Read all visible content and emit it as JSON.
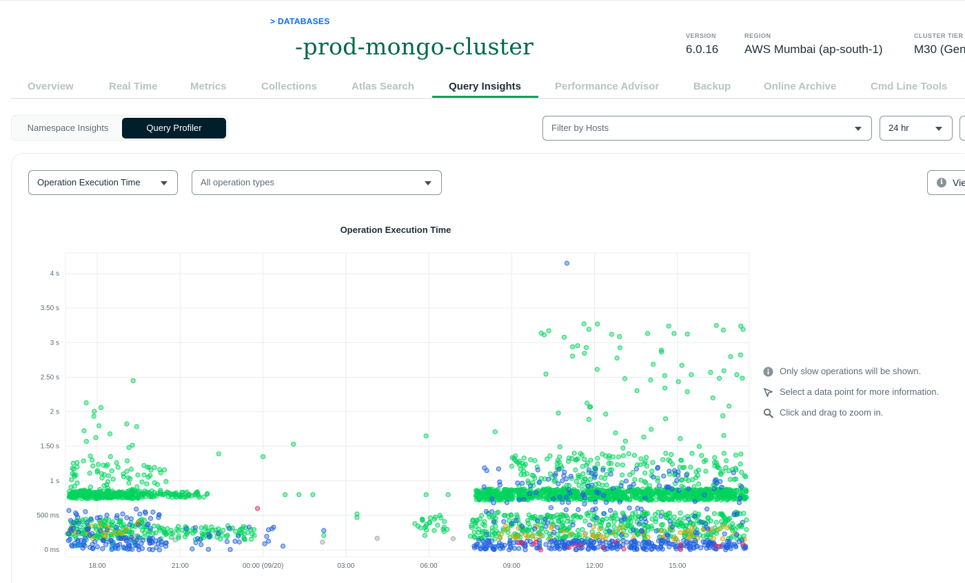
{
  "breadcrumb": "> DATABASES",
  "cluster": {
    "name": "-prod-mongo-cluster"
  },
  "meta": [
    {
      "label": "VERSION",
      "value": "6.0.16"
    },
    {
      "label": "REGION",
      "value": "AWS Mumbai (ap-south-1)"
    },
    {
      "label": "CLUSTER TIER",
      "value": "M30 (Gen"
    }
  ],
  "tabs": [
    {
      "label": "Overview",
      "active": false
    },
    {
      "label": "Real Time",
      "active": false
    },
    {
      "label": "Metrics",
      "active": false
    },
    {
      "label": "Collections",
      "active": false
    },
    {
      "label": "Atlas Search",
      "active": false
    },
    {
      "label": "Query Insights",
      "active": true
    },
    {
      "label": "Performance Advisor",
      "active": false
    },
    {
      "label": "Backup",
      "active": false
    },
    {
      "label": "Online Archive",
      "active": false
    },
    {
      "label": "Cmd Line Tools",
      "active": false
    }
  ],
  "toggle": {
    "namespace_insights": "Namespace Insights",
    "query_profiler": "Query Profiler",
    "selected": "Query Profiler"
  },
  "filters": {
    "hosts_placeholder": "Filter by Hosts",
    "time_range": "24 hr",
    "metric": "Operation Execution Time",
    "operation_types": "All operation types",
    "view_button": "Vie"
  },
  "hints": [
    {
      "icon": "info-icon",
      "text": "Only slow operations will be shown."
    },
    {
      "icon": "cursor-arrow-icon",
      "text": "Select a data point for more information."
    },
    {
      "icon": "magnifier-icon",
      "text": "Click and drag to zoom in."
    }
  ],
  "colors": {
    "brand_green": "#00684a",
    "accent_green": "#00a35c",
    "link_blue": "#016bf8",
    "dark": "#001e2b",
    "series_green": "#00d35c",
    "series_blue": "#1f5fe0",
    "series_yellow": "#d4a400",
    "series_pink": "#e8205e",
    "series_cyan": "#00bcd4",
    "series_gray": "#9aa0a6"
  },
  "chart_data": {
    "type": "scatter",
    "title": "Operation Execution Time",
    "xlabel": "",
    "ylabel": "",
    "x_ticks": [
      "18:00",
      "21:00",
      "00:00 (09/20)",
      "03:00",
      "06:00",
      "09:00",
      "12:00",
      "15:00"
    ],
    "y_ticks": [
      "0 ms",
      "500 ms",
      "1 s",
      "1.50 s",
      "2 s",
      "2.50 s",
      "3 s",
      "3.50 s",
      "4 s"
    ],
    "y_unit": "seconds",
    "ylim": [
      -0.1,
      4.3
    ],
    "xlim_hours_from_1800": [
      -1.15,
      23.6
    ],
    "grid": true,
    "legend": "none",
    "clusters": [
      {
        "series": "green",
        "x": [
          -1.1,
          1.5
        ],
        "y": [
          0.74,
          0.86
        ],
        "n": 230
      },
      {
        "series": "green",
        "x": [
          1.5,
          4.0
        ],
        "y": [
          0.76,
          0.84
        ],
        "n": 70
      },
      {
        "series": "green",
        "x": [
          13.7,
          23.5
        ],
        "y": [
          0.72,
          0.88
        ],
        "n": 900
      },
      {
        "series": "green",
        "x": [
          -1.0,
          2.5
        ],
        "y": [
          0.85,
          1.3
        ],
        "n": 70
      },
      {
        "series": "green",
        "x": [
          -0.5,
          1.5
        ],
        "y": [
          1.3,
          2.1
        ],
        "n": 14
      },
      {
        "series": "green",
        "x": [
          15.0,
          23.5
        ],
        "y": [
          0.85,
          1.4
        ],
        "n": 220
      },
      {
        "series": "green",
        "x": [
          16.0,
          23.5
        ],
        "y": [
          1.4,
          3.3
        ],
        "n": 60
      },
      {
        "series": "green",
        "x": [
          -1.1,
          1.8
        ],
        "y": [
          0.15,
          0.45
        ],
        "n": 140
      },
      {
        "series": "green",
        "x": [
          1.8,
          5.7
        ],
        "y": [
          0.15,
          0.35
        ],
        "n": 90
      },
      {
        "series": "green",
        "x": [
          11.5,
          12.8
        ],
        "y": [
          0.2,
          0.5
        ],
        "n": 25
      },
      {
        "series": "green",
        "x": [
          13.5,
          23.5
        ],
        "y": [
          0.15,
          0.55
        ],
        "n": 420
      },
      {
        "series": "blue",
        "x": [
          -1.1,
          2.5
        ],
        "y": [
          0.0,
          0.18
        ],
        "n": 85
      },
      {
        "series": "blue",
        "x": [
          -1.1,
          2.5
        ],
        "y": [
          0.2,
          0.6
        ],
        "n": 45
      },
      {
        "series": "blue",
        "x": [
          3.0,
          6.8
        ],
        "y": [
          0.0,
          0.35
        ],
        "n": 25
      },
      {
        "series": "blue",
        "x": [
          13.5,
          23.5
        ],
        "y": [
          0.0,
          0.14
        ],
        "n": 280
      },
      {
        "series": "blue",
        "x": [
          14.0,
          23.5
        ],
        "y": [
          0.2,
          1.2
        ],
        "n": 150
      },
      {
        "series": "yellow",
        "x": [
          -1.0,
          1.8
        ],
        "y": [
          0.15,
          0.4
        ],
        "n": 22
      },
      {
        "series": "yellow",
        "x": [
          14.5,
          23.5
        ],
        "y": [
          0.15,
          0.35
        ],
        "n": 60
      },
      {
        "series": "pink",
        "x": [
          14.0,
          23.5
        ],
        "y": [
          0.0,
          0.12
        ],
        "n": 16
      },
      {
        "series": "gray",
        "x": [
          0.0,
          23.5
        ],
        "y": [
          0.1,
          0.25
        ],
        "n": 18
      },
      {
        "series": "cyan",
        "x": [
          -0.8,
          1.8
        ],
        "y": [
          0.0,
          0.15
        ],
        "n": 12
      }
    ],
    "points": [
      {
        "series": "blue",
        "x": 17.0,
        "y": 4.15
      },
      {
        "series": "green",
        "x": 18.1,
        "y": 3.27
      },
      {
        "series": "green",
        "x": 16.9,
        "y": 3.08
      },
      {
        "series": "green",
        "x": 17.7,
        "y": 2.93
      },
      {
        "series": "green",
        "x": 1.3,
        "y": 2.45
      },
      {
        "series": "green",
        "x": 22.2,
        "y": 2.57
      },
      {
        "series": "green",
        "x": -0.4,
        "y": 2.13
      },
      {
        "series": "green",
        "x": 4.4,
        "y": 1.39
      },
      {
        "series": "green",
        "x": 7.1,
        "y": 1.53
      },
      {
        "series": "green",
        "x": 11.9,
        "y": 1.65
      },
      {
        "series": "green",
        "x": 14.4,
        "y": 1.71
      },
      {
        "series": "green",
        "x": 6.0,
        "y": 1.35
      },
      {
        "series": "green",
        "x": 9.4,
        "y": 0.52
      },
      {
        "series": "green",
        "x": 9.4,
        "y": 0.47
      },
      {
        "series": "blue",
        "x": 8.2,
        "y": 0.28
      },
      {
        "series": "green",
        "x": 8.2,
        "y": 0.21
      },
      {
        "series": "pink",
        "x": 5.8,
        "y": 0.6
      },
      {
        "series": "green",
        "x": 11.9,
        "y": 0.8
      },
      {
        "series": "green",
        "x": 12.7,
        "y": 0.8
      },
      {
        "series": "green",
        "x": 7.8,
        "y": 0.8
      },
      {
        "series": "green",
        "x": 7.3,
        "y": 0.8
      },
      {
        "series": "green",
        "x": 6.8,
        "y": 0.8
      }
    ]
  }
}
